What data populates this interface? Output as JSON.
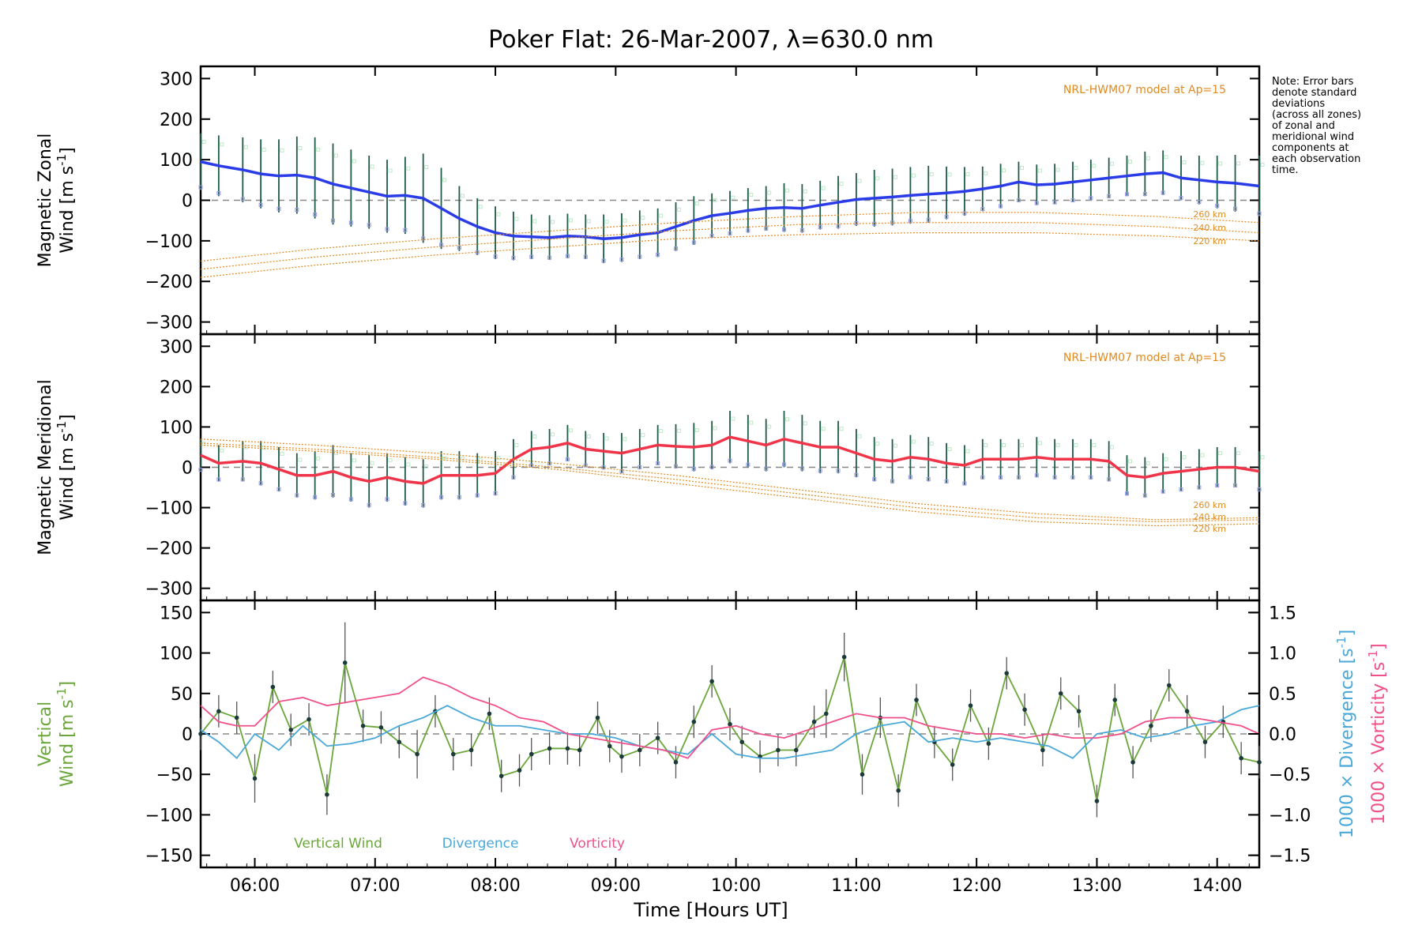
{
  "figure": {
    "title": "Poker Flat: 26-Mar-2007, λ=630.0 nm",
    "xlabel": "Time [Hours UT]",
    "note_lines": [
      "Note: Error bars",
      "denote standard",
      "deviations",
      "(across all zones)",
      "of zonal and",
      "meridional wind",
      "components at",
      "each observation",
      "time."
    ],
    "colors": {
      "zonal": "#2a3be8",
      "meridional": "#f0354a",
      "vertical": "#6aa63a",
      "divergence": "#4aa8d8",
      "vorticity": "#f0508a",
      "model": "#e08a1e",
      "errorbar": "#1f5a4a",
      "scatter": "#9a9ae8"
    }
  },
  "chart_data": [
    {
      "type": "line",
      "panel": "zonal",
      "ylabel_line1": "Magnetic Zonal",
      "ylabel_line2": "Wind [m s",
      "ylabel_sup": "-1",
      "ylabel_end": "]",
      "ylim": [
        -330,
        330
      ],
      "yticks": [
        -300,
        -200,
        -100,
        0,
        100,
        200,
        300
      ],
      "xlim": [
        5.55,
        14.35
      ],
      "xticks": [
        "06:00",
        "07:00",
        "08:00",
        "09:00",
        "10:00",
        "11:00",
        "12:00",
        "13:00",
        "14:00"
      ],
      "model_label": "NRL-HWM07 model at Ap=15",
      "model_levels": [
        "260 km",
        "240 km",
        "220 km"
      ],
      "series": [
        {
          "name": "Magnetic Zonal Wind",
          "x": [
            5.55,
            5.7,
            5.9,
            6.05,
            6.2,
            6.35,
            6.5,
            6.65,
            6.8,
            6.95,
            7.1,
            7.25,
            7.4,
            7.55,
            7.7,
            7.85,
            8.0,
            8.15,
            8.3,
            8.45,
            8.6,
            8.75,
            8.9,
            9.05,
            9.2,
            9.35,
            9.5,
            9.65,
            9.8,
            9.95,
            10.1,
            10.25,
            10.4,
            10.55,
            10.7,
            10.85,
            11.0,
            11.15,
            11.3,
            11.45,
            11.6,
            11.75,
            11.9,
            12.05,
            12.2,
            12.35,
            12.5,
            12.65,
            12.8,
            12.95,
            13.1,
            13.25,
            13.4,
            13.55,
            13.7,
            13.85,
            14.0,
            14.15,
            14.35
          ],
          "values": [
            95,
            85,
            75,
            65,
            60,
            62,
            55,
            40,
            30,
            20,
            10,
            12,
            5,
            -20,
            -45,
            -65,
            -80,
            -88,
            -90,
            -92,
            -88,
            -90,
            -95,
            -92,
            -85,
            -80,
            -65,
            -50,
            -38,
            -32,
            -25,
            -20,
            -18,
            -20,
            -12,
            -5,
            2,
            5,
            8,
            12,
            15,
            18,
            22,
            28,
            35,
            45,
            38,
            40,
            45,
            50,
            55,
            60,
            65,
            68,
            55,
            50,
            45,
            42,
            35
          ],
          "errors": [
            70,
            75,
            80,
            85,
            90,
            95,
            100,
            100,
            95,
            90,
            90,
            95,
            110,
            100,
            80,
            70,
            65,
            60,
            55,
            55,
            55,
            55,
            60,
            60,
            60,
            60,
            60,
            60,
            55,
            55,
            55,
            55,
            60,
            60,
            60,
            65,
            65,
            70,
            70,
            70,
            70,
            65,
            60,
            55,
            55,
            50,
            50,
            50,
            50,
            50,
            50,
            50,
            55,
            55,
            55,
            60,
            65,
            70,
            75
          ]
        },
        {
          "name": "Model 260 km",
          "x": [
            5.55,
            6.5,
            7.5,
            8.5,
            9.5,
            10.5,
            11.5,
            12.5,
            13.5,
            14.35
          ],
          "values": [
            -150,
            -120,
            -95,
            -75,
            -55,
            -40,
            -30,
            -30,
            -40,
            -55
          ]
        },
        {
          "name": "Model 240 km",
          "x": [
            5.55,
            6.5,
            7.5,
            8.5,
            9.5,
            10.5,
            11.5,
            12.5,
            13.5,
            14.35
          ],
          "values": [
            -170,
            -140,
            -115,
            -95,
            -75,
            -60,
            -55,
            -55,
            -65,
            -80
          ]
        },
        {
          "name": "Model 220 km",
          "x": [
            5.55,
            6.5,
            7.5,
            8.5,
            9.5,
            10.5,
            11.5,
            12.5,
            13.5,
            14.35
          ],
          "values": [
            -190,
            -160,
            -135,
            -115,
            -95,
            -85,
            -80,
            -80,
            -88,
            -100
          ]
        }
      ]
    },
    {
      "type": "line",
      "panel": "meridional",
      "ylabel_line1": "Magnetic Meridional",
      "ylabel_line2": "Wind [m s",
      "ylabel_sup": "-1",
      "ylabel_end": "]",
      "ylim": [
        -330,
        330
      ],
      "yticks": [
        -300,
        -200,
        -100,
        0,
        100,
        200,
        300
      ],
      "xlim": [
        5.55,
        14.35
      ],
      "model_label": "NRL-HWM07 model at Ap=15",
      "model_levels": [
        "260 km",
        "240 km",
        "220 km"
      ],
      "series": [
        {
          "name": "Magnetic Meridional Wind",
          "x": [
            5.55,
            5.7,
            5.9,
            6.05,
            6.2,
            6.35,
            6.5,
            6.65,
            6.8,
            6.95,
            7.1,
            7.25,
            7.4,
            7.55,
            7.7,
            7.85,
            8.0,
            8.15,
            8.3,
            8.45,
            8.6,
            8.75,
            8.9,
            9.05,
            9.2,
            9.35,
            9.5,
            9.65,
            9.8,
            9.95,
            10.1,
            10.25,
            10.4,
            10.55,
            10.7,
            10.85,
            11.0,
            11.15,
            11.3,
            11.45,
            11.6,
            11.75,
            11.9,
            12.05,
            12.2,
            12.35,
            12.5,
            12.65,
            12.8,
            12.95,
            13.1,
            13.25,
            13.4,
            13.55,
            13.7,
            13.85,
            14.0,
            14.15,
            14.35
          ],
          "values": [
            30,
            10,
            15,
            10,
            -5,
            -20,
            -20,
            -10,
            -25,
            -35,
            -25,
            -35,
            -40,
            -20,
            -20,
            -20,
            -15,
            20,
            45,
            50,
            60,
            45,
            40,
            35,
            45,
            55,
            52,
            50,
            55,
            75,
            65,
            55,
            70,
            60,
            50,
            50,
            35,
            20,
            15,
            25,
            20,
            10,
            5,
            20,
            20,
            20,
            25,
            20,
            20,
            20,
            15,
            -20,
            -25,
            -15,
            -10,
            -5,
            0,
            0,
            -10
          ],
          "errors": [
            40,
            45,
            50,
            55,
            55,
            55,
            60,
            65,
            60,
            65,
            60,
            60,
            60,
            60,
            60,
            55,
            55,
            50,
            45,
            45,
            45,
            45,
            45,
            50,
            50,
            50,
            55,
            60,
            60,
            65,
            65,
            65,
            70,
            70,
            65,
            65,
            60,
            55,
            55,
            55,
            55,
            50,
            50,
            50,
            50,
            50,
            50,
            50,
            50,
            50,
            50,
            50,
            50,
            50,
            50,
            50,
            50,
            50,
            50
          ]
        },
        {
          "name": "Model 260 km",
          "x": [
            5.55,
            6.5,
            7.5,
            8.5,
            9.5,
            10.5,
            11.5,
            12.5,
            13.5,
            14.35
          ],
          "values": [
            70,
            55,
            35,
            10,
            -20,
            -55,
            -90,
            -115,
            -130,
            -125
          ]
        },
        {
          "name": "Model 240 km",
          "x": [
            5.55,
            6.5,
            7.5,
            8.5,
            9.5,
            10.5,
            11.5,
            12.5,
            13.5,
            14.35
          ],
          "values": [
            60,
            45,
            25,
            0,
            -30,
            -65,
            -100,
            -125,
            -135,
            -130
          ]
        },
        {
          "name": "Model 220 km",
          "x": [
            5.55,
            6.5,
            7.5,
            8.5,
            9.5,
            10.5,
            11.5,
            12.5,
            13.5,
            14.35
          ],
          "values": [
            55,
            40,
            20,
            -5,
            -40,
            -75,
            -110,
            -135,
            -145,
            -140
          ]
        }
      ]
    },
    {
      "type": "line",
      "panel": "vertical",
      "ylabel_line1": "Vertical",
      "ylabel_line2": "Wind [m s",
      "ylabel_sup": "-1",
      "ylabel_end": "]",
      "ylim": [
        -165,
        165
      ],
      "yticks": [
        -150,
        -100,
        -50,
        0,
        50,
        100,
        150
      ],
      "y2lim": [
        -1.65,
        1.65
      ],
      "y2ticks": [
        "1.5",
        "1.0",
        "0.5",
        "0.0",
        "-0.5",
        "-1.0",
        "-1.5"
      ],
      "y2label_div": "1000 × Divergence [s",
      "y2label_vort": "1000 × Vorticity [s",
      "y2label_sup": "-1",
      "y2label_end": "]",
      "xlim": [
        5.55,
        14.35
      ],
      "legend": [
        "Vertical Wind",
        "Divergence",
        "Vorticity"
      ],
      "series": [
        {
          "name": "Vertical Wind",
          "x": [
            5.55,
            5.7,
            5.85,
            6.0,
            6.15,
            6.3,
            6.45,
            6.6,
            6.75,
            6.9,
            7.05,
            7.2,
            7.35,
            7.5,
            7.65,
            7.8,
            7.95,
            8.05,
            8.2,
            8.3,
            8.45,
            8.6,
            8.7,
            8.85,
            8.95,
            9.05,
            9.2,
            9.35,
            9.5,
            9.65,
            9.8,
            9.95,
            10.05,
            10.2,
            10.35,
            10.5,
            10.65,
            10.75,
            10.9,
            11.05,
            11.2,
            11.35,
            11.5,
            11.65,
            11.8,
            11.95,
            12.1,
            12.25,
            12.4,
            12.55,
            12.7,
            12.85,
            13.0,
            13.15,
            13.3,
            13.45,
            13.6,
            13.75,
            13.9,
            14.05,
            14.2,
            14.35
          ],
          "values": [
            0,
            28,
            20,
            -55,
            58,
            5,
            18,
            -75,
            88,
            10,
            8,
            -10,
            -25,
            28,
            -25,
            -20,
            25,
            -52,
            -45,
            -25,
            -18,
            -18,
            -20,
            20,
            -15,
            -28,
            -20,
            -5,
            -35,
            15,
            65,
            12,
            -10,
            -28,
            -20,
            -20,
            15,
            25,
            95,
            -50,
            20,
            -70,
            42,
            -10,
            -38,
            35,
            -12,
            75,
            30,
            -20,
            50,
            28,
            -83,
            42,
            -35,
            10,
            60,
            28,
            -10,
            15,
            -30,
            -35
          ],
          "errors": [
            20,
            20,
            20,
            30,
            20,
            20,
            20,
            25,
            50,
            20,
            20,
            20,
            30,
            20,
            20,
            20,
            20,
            20,
            20,
            20,
            20,
            20,
            20,
            20,
            20,
            20,
            20,
            20,
            20,
            20,
            20,
            20,
            20,
            20,
            20,
            20,
            20,
            30,
            30,
            25,
            25,
            20,
            20,
            20,
            20,
            20,
            20,
            20,
            20,
            20,
            20,
            20,
            20,
            20,
            20,
            20,
            20,
            20,
            20,
            20,
            20,
            20
          ]
        },
        {
          "name": "Divergence",
          "x": [
            5.55,
            5.7,
            5.85,
            6.0,
            6.2,
            6.4,
            6.6,
            6.8,
            7.0,
            7.2,
            7.4,
            7.6,
            7.8,
            8.0,
            8.2,
            8.4,
            8.6,
            8.8,
            9.0,
            9.2,
            9.4,
            9.6,
            9.8,
            10.0,
            10.2,
            10.4,
            10.6,
            10.8,
            11.0,
            11.2,
            11.4,
            11.6,
            11.8,
            12.0,
            12.2,
            12.4,
            12.6,
            12.8,
            13.0,
            13.2,
            13.4,
            13.6,
            13.8,
            14.0,
            14.2,
            14.35
          ],
          "values": [
            0.05,
            -0.1,
            -0.3,
            0.0,
            -0.2,
            0.1,
            -0.15,
            -0.12,
            -0.05,
            0.1,
            0.2,
            0.35,
            0.2,
            0.1,
            0.1,
            0.05,
            0.0,
            0.0,
            -0.05,
            -0.15,
            -0.2,
            -0.25,
            0.0,
            -0.25,
            -0.3,
            -0.3,
            -0.25,
            -0.2,
            0.0,
            0.1,
            0.15,
            -0.1,
            -0.05,
            -0.1,
            -0.05,
            -0.1,
            -0.15,
            -0.3,
            0.0,
            0.05,
            -0.05,
            0.0,
            0.1,
            0.15,
            0.3,
            0.35
          ]
        },
        {
          "name": "Vorticity",
          "x": [
            5.55,
            5.7,
            5.85,
            6.0,
            6.2,
            6.4,
            6.6,
            6.8,
            7.0,
            7.2,
            7.4,
            7.6,
            7.8,
            8.0,
            8.2,
            8.4,
            8.6,
            8.8,
            9.0,
            9.2,
            9.4,
            9.6,
            9.8,
            10.0,
            10.2,
            10.4,
            10.6,
            10.8,
            11.0,
            11.2,
            11.4,
            11.6,
            11.8,
            12.0,
            12.2,
            12.4,
            12.6,
            12.8,
            13.0,
            13.2,
            13.4,
            13.6,
            13.8,
            14.0,
            14.2,
            14.35
          ],
          "values": [
            0.35,
            0.15,
            0.1,
            0.1,
            0.4,
            0.45,
            0.35,
            0.4,
            0.45,
            0.5,
            0.7,
            0.6,
            0.45,
            0.35,
            0.2,
            0.15,
            0.0,
            -0.05,
            -0.1,
            -0.15,
            -0.2,
            -0.3,
            0.05,
            0.1,
            0.0,
            -0.05,
            0.05,
            0.15,
            0.25,
            0.2,
            0.2,
            0.1,
            0.05,
            0.0,
            0.0,
            -0.05,
            0.0,
            -0.05,
            -0.05,
            0.0,
            0.15,
            0.2,
            0.2,
            0.15,
            0.1,
            0.0
          ]
        }
      ]
    }
  ]
}
